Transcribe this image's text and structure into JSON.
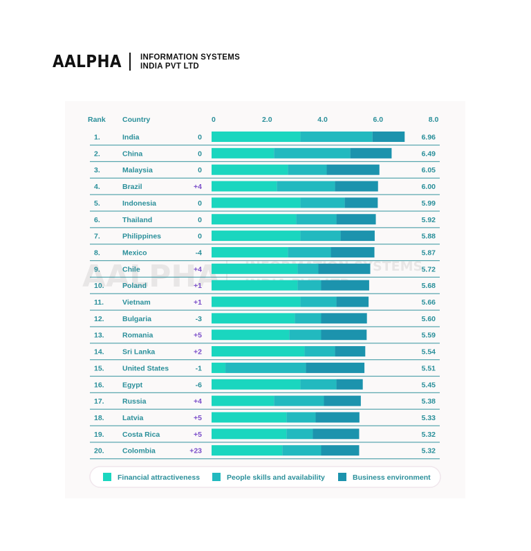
{
  "brand": {
    "logo_word": "AALPHA",
    "line1": "INFORMATION SYSTEMS",
    "line2": "INDIA PVT LTD"
  },
  "headers": {
    "rank": "Rank",
    "country": "Country"
  },
  "colors": {
    "financial": "#1ad6bf",
    "people": "#22b9bf",
    "business": "#1c93ad",
    "text": "#2a8f9a",
    "positive": "#7b4fc9",
    "zero": "#2a8f9a",
    "negative": "#2a8f9a",
    "divider": "#2a8f9a"
  },
  "chart_data": {
    "type": "bar",
    "orientation": "horizontal",
    "stacked": true,
    "xlim": [
      0,
      8
    ],
    "xticks": [
      "0",
      "2.0",
      "4.0",
      "6.0",
      "8.0"
    ],
    "xtick_values": [
      0,
      2,
      4,
      6,
      8
    ],
    "legend": [
      "Financial attractiveness",
      "People skills and availability",
      "Business environment"
    ],
    "legend_position": "bottom",
    "rows": [
      {
        "rank": "1.",
        "country": "India",
        "change": "0",
        "total": "6.96",
        "values": [
          3.2,
          2.6,
          1.16
        ]
      },
      {
        "rank": "2.",
        "country": "China",
        "change": "0",
        "total": "6.49",
        "values": [
          2.25,
          2.75,
          1.49
        ]
      },
      {
        "rank": "3.",
        "country": "Malaysia",
        "change": "0",
        "total": "6.05",
        "values": [
          2.75,
          1.4,
          1.9
        ]
      },
      {
        "rank": "4.",
        "country": "Brazil",
        "change": "+4",
        "total": "6.00",
        "values": [
          2.35,
          2.1,
          1.55
        ]
      },
      {
        "rank": "5.",
        "country": "Indonesia",
        "change": "0",
        "total": "5.99",
        "values": [
          3.2,
          1.6,
          1.19
        ]
      },
      {
        "rank": "6.",
        "country": "Thailand",
        "change": "0",
        "total": "5.92",
        "values": [
          3.05,
          1.45,
          1.42
        ]
      },
      {
        "rank": "7.",
        "country": "Philippines",
        "change": "0",
        "total": "5.88",
        "values": [
          3.2,
          1.45,
          1.23
        ]
      },
      {
        "rank": "8.",
        "country": "Mexico",
        "change": "-4",
        "total": "5.87",
        "values": [
          2.75,
          1.55,
          1.57
        ]
      },
      {
        "rank": "9.",
        "country": "Chile",
        "change": "+4",
        "total": "5.72",
        "values": [
          3.1,
          0.75,
          1.87
        ]
      },
      {
        "rank": "10.",
        "country": "Poland",
        "change": "+1",
        "total": "5.68",
        "values": [
          3.1,
          0.85,
          1.73
        ]
      },
      {
        "rank": "11.",
        "country": "Vietnam",
        "change": "+1",
        "total": "5.66",
        "values": [
          3.2,
          1.3,
          1.16
        ]
      },
      {
        "rank": "12.",
        "country": "Bulgaria",
        "change": "-3",
        "total": "5.60",
        "values": [
          3.0,
          0.95,
          1.65
        ]
      },
      {
        "rank": "13.",
        "country": "Romania",
        "change": "+5",
        "total": "5.59",
        "values": [
          2.8,
          1.15,
          1.64
        ]
      },
      {
        "rank": "14.",
        "country": "Sri Lanka",
        "change": "+2",
        "total": "5.54",
        "values": [
          3.35,
          1.1,
          1.09
        ]
      },
      {
        "rank": "15.",
        "country": "United States",
        "change": "-1",
        "total": "5.51",
        "values": [
          0.5,
          2.9,
          2.11
        ]
      },
      {
        "rank": "16.",
        "country": "Egypt",
        "change": "-6",
        "total": "5.45",
        "values": [
          3.2,
          1.3,
          0.95
        ]
      },
      {
        "rank": "17.",
        "country": "Russia",
        "change": "+4",
        "total": "5.38",
        "values": [
          2.25,
          1.8,
          1.33
        ]
      },
      {
        "rank": "18.",
        "country": "Latvia",
        "change": "+5",
        "total": "5.33",
        "values": [
          2.7,
          1.05,
          1.58
        ]
      },
      {
        "rank": "19.",
        "country": "Costa Rica",
        "change": "+5",
        "total": "5.32",
        "values": [
          2.7,
          0.95,
          1.67
        ]
      },
      {
        "rank": "20.",
        "country": "Colombia",
        "change": "+23",
        "total": "5.32",
        "values": [
          2.55,
          1.4,
          1.37
        ]
      }
    ]
  }
}
